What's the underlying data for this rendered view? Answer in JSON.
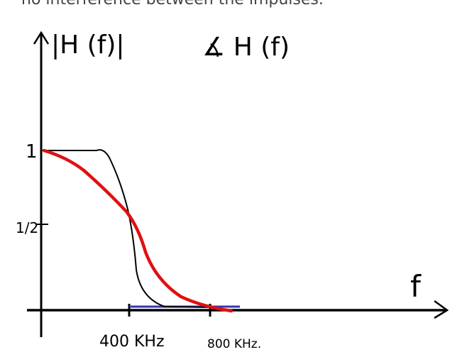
{
  "header": {
    "text": "no interference between the impulses."
  },
  "sketch": {
    "magnitude_label": "|H (f)|",
    "phase_label": "∡ H (f)",
    "y_label_one": "1",
    "y_label_half": "1/2",
    "x_axis_label": "f",
    "x_label_400": "400 KHz",
    "x_label_800": "800 KHz."
  }
}
